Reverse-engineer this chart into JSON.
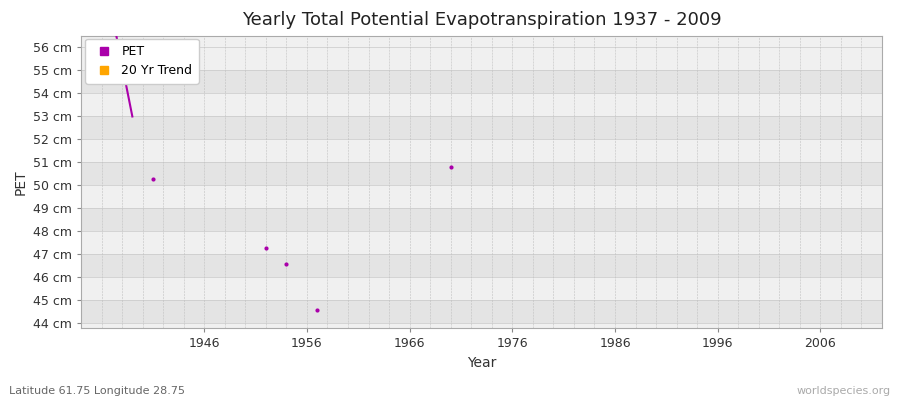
{
  "title": "Yearly Total Potential Evapotranspiration 1937 - 2009",
  "xlabel": "Year",
  "ylabel": "PET",
  "subtitle": "Latitude 61.75 Longitude 28.75",
  "watermark": "worldspecies.org",
  "xlim": [
    1934,
    2012
  ],
  "ylim": [
    43.8,
    56.5
  ],
  "yticks": [
    44,
    45,
    46,
    47,
    48,
    49,
    50,
    51,
    52,
    53,
    54,
    55,
    56
  ],
  "xticks": [
    1946,
    1956,
    1966,
    1976,
    1986,
    1996,
    2006
  ],
  "pet_color": "#AA00AA",
  "trend_color": "#FFA500",
  "plot_bg_light": "#f0f0f0",
  "plot_bg_dark": "#e4e4e4",
  "grid_color_h": "#c8c8c8",
  "grid_color_v": "#c0c0c0",
  "pet_scatter_years": [
    1941,
    1952,
    1954,
    1957,
    1970
  ],
  "pet_scatter_values": [
    50.3,
    47.3,
    46.6,
    44.6,
    50.8
  ],
  "pet_line_years": [
    1937,
    1939
  ],
  "pet_line_values": [
    57.5,
    53.0
  ],
  "legend_labels": [
    "PET",
    "20 Yr Trend"
  ]
}
